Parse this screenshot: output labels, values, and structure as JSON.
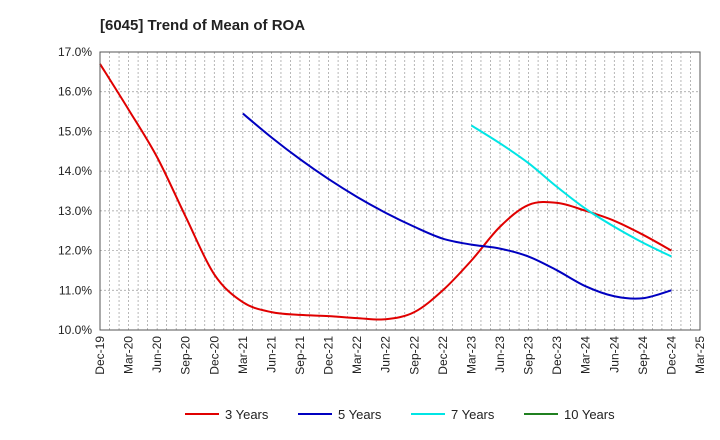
{
  "chart_data": {
    "type": "line",
    "title": "[6045]  Trend of Mean of ROA",
    "xlabel": "",
    "ylabel": "",
    "x_ticks": [
      "Dec-19",
      "Mar-20",
      "Jun-20",
      "Sep-20",
      "Dec-20",
      "Mar-21",
      "Jun-21",
      "Sep-21",
      "Dec-21",
      "Mar-22",
      "Jun-22",
      "Sep-22",
      "Dec-22",
      "Mar-23",
      "Jun-23",
      "Sep-23",
      "Dec-23",
      "Mar-24",
      "Jun-24",
      "Sep-24",
      "Dec-24",
      "Mar-25"
    ],
    "ylim": [
      10.0,
      17.0
    ],
    "y_ticks": [
      "10.0%",
      "11.0%",
      "12.0%",
      "13.0%",
      "14.0%",
      "15.0%",
      "16.0%",
      "17.0%"
    ],
    "grid": true,
    "legend_position": "bottom",
    "series": [
      {
        "name": "3 Years",
        "color": "#e00000",
        "points": [
          [
            "Dec-19",
            16.7
          ],
          [
            "Mar-20",
            15.55
          ],
          [
            "Jun-20",
            14.35
          ],
          [
            "Sep-20",
            12.85
          ],
          [
            "Dec-20",
            11.4
          ],
          [
            "Mar-21",
            10.7
          ],
          [
            "Jun-21",
            10.45
          ],
          [
            "Sep-21",
            10.38
          ],
          [
            "Dec-21",
            10.35
          ],
          [
            "Mar-22",
            10.3
          ],
          [
            "Jun-22",
            10.27
          ],
          [
            "Sep-22",
            10.45
          ],
          [
            "Dec-22",
            11.0
          ],
          [
            "Mar-23",
            11.75
          ],
          [
            "Jun-23",
            12.6
          ],
          [
            "Sep-23",
            13.15
          ],
          [
            "Dec-23",
            13.2
          ],
          [
            "Mar-24",
            13.0
          ],
          [
            "Jun-24",
            12.75
          ],
          [
            "Sep-24",
            12.4
          ],
          [
            "Dec-24",
            12.0
          ]
        ]
      },
      {
        "name": "5 Years",
        "color": "#0000c0",
        "points": [
          [
            "Mar-21",
            15.45
          ],
          [
            "Jun-21",
            14.85
          ],
          [
            "Sep-21",
            14.3
          ],
          [
            "Dec-21",
            13.8
          ],
          [
            "Mar-22",
            13.35
          ],
          [
            "Jun-22",
            12.95
          ],
          [
            "Sep-22",
            12.6
          ],
          [
            "Dec-22",
            12.3
          ],
          [
            "Mar-23",
            12.15
          ],
          [
            "Jun-23",
            12.05
          ],
          [
            "Sep-23",
            11.85
          ],
          [
            "Dec-23",
            11.5
          ],
          [
            "Mar-24",
            11.1
          ],
          [
            "Jun-24",
            10.85
          ],
          [
            "Sep-24",
            10.8
          ],
          [
            "Dec-24",
            11.0
          ]
        ]
      },
      {
        "name": "7 Years",
        "color": "#00e5e5",
        "points": [
          [
            "Mar-23",
            15.15
          ],
          [
            "Jun-23",
            14.7
          ],
          [
            "Sep-23",
            14.2
          ],
          [
            "Dec-23",
            13.6
          ],
          [
            "Mar-24",
            13.05
          ],
          [
            "Jun-24",
            12.6
          ],
          [
            "Sep-24",
            12.2
          ],
          [
            "Dec-24",
            11.85
          ]
        ]
      },
      {
        "name": "10 Years",
        "color": "#208020",
        "points": []
      }
    ]
  }
}
